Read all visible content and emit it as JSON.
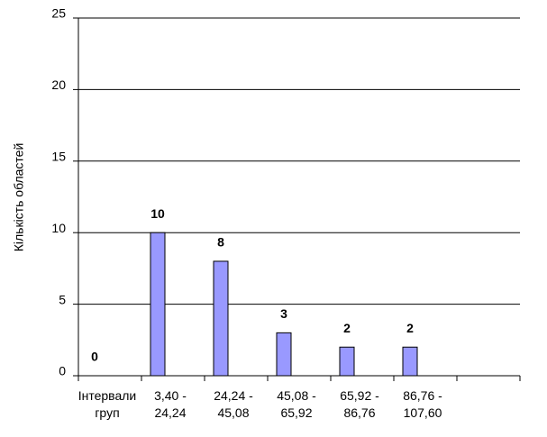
{
  "chart_data": {
    "type": "bar",
    "y_label": "Кількість областей",
    "categories": [
      "Інтервали груп",
      "3,40 -\n24,24",
      "24,24 -\n45,08",
      "45,08 -\n65,92",
      "65,92 -\n86,76",
      "86,76 -\n107,60",
      null
    ],
    "values": [
      0,
      10,
      8,
      3,
      2,
      2,
      null
    ],
    "color": "#9999ff",
    "ylim": [
      0,
      25
    ],
    "yticks": [
      0,
      5,
      10,
      15,
      20,
      25
    ],
    "grid": true
  }
}
